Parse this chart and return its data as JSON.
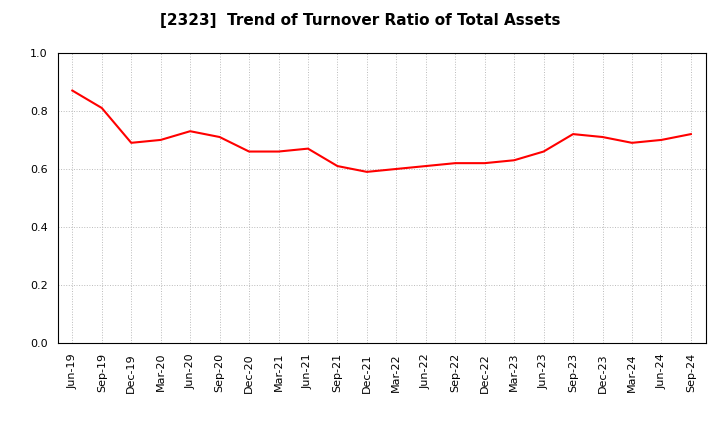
{
  "title": "[2323]  Trend of Turnover Ratio of Total Assets",
  "labels": [
    "Jun-19",
    "Sep-19",
    "Dec-19",
    "Mar-20",
    "Jun-20",
    "Sep-20",
    "Dec-20",
    "Mar-21",
    "Jun-21",
    "Sep-21",
    "Dec-21",
    "Mar-22",
    "Jun-22",
    "Sep-22",
    "Dec-22",
    "Mar-23",
    "Jun-23",
    "Sep-23",
    "Dec-23",
    "Mar-24",
    "Jun-24",
    "Sep-24"
  ],
  "values": [
    0.87,
    0.81,
    0.69,
    0.7,
    0.73,
    0.71,
    0.66,
    0.66,
    0.67,
    0.61,
    0.59,
    0.6,
    0.61,
    0.62,
    0.62,
    0.63,
    0.66,
    0.72,
    0.71,
    0.69,
    0.7,
    0.72
  ],
  "line_color": "#FF0000",
  "line_width": 1.5,
  "ylim": [
    0.0,
    1.0
  ],
  "yticks": [
    0.0,
    0.2,
    0.4,
    0.6,
    0.8,
    1.0
  ],
  "background_color": "#FFFFFF",
  "plot_bg_color": "#FFFFFF",
  "grid_color": "#BBBBBB",
  "title_fontsize": 11,
  "tick_fontsize": 8
}
